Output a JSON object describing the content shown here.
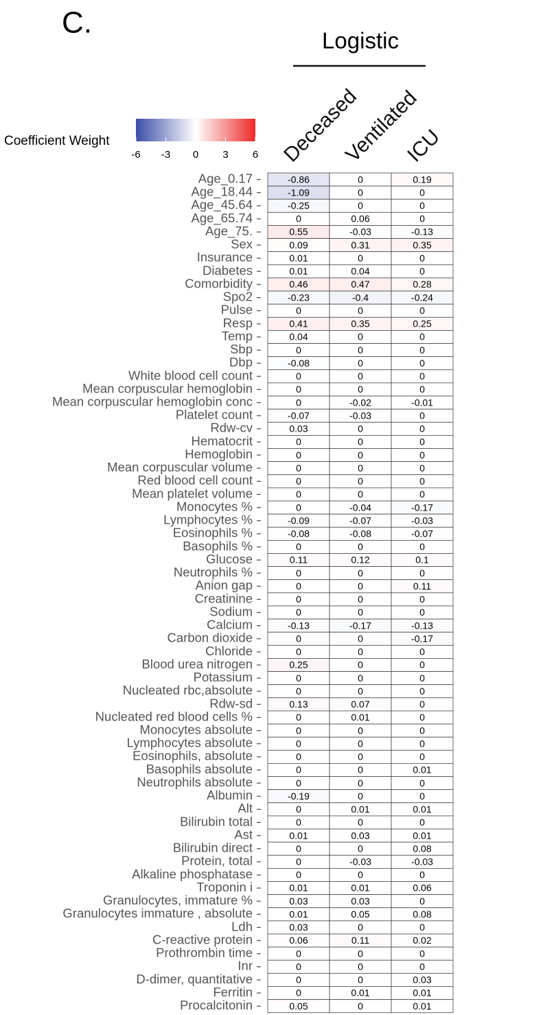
{
  "chart_data": {
    "type": "heatmap",
    "panel_label": "C.",
    "title": "Logistic",
    "columns": [
      "Deceased",
      "Ventilated",
      "ICU"
    ],
    "rows": [
      "Age_0.17",
      "Age_18.44",
      "Age_45.64",
      "Age_65.74",
      "Age_75.",
      "Sex",
      "Insurance",
      "Diabetes",
      "Comorbidity",
      "Spo2",
      "Pulse",
      "Resp",
      "Temp",
      "Sbp",
      "Dbp",
      "White blood cell count",
      "Mean corpuscular hemoglobin",
      "Mean corpuscular hemoglobin conc",
      "Platelet count",
      "Rdw-cv",
      "Hematocrit",
      "Hemoglobin",
      "Mean corpuscular volume",
      "Red blood cell count",
      "Mean platelet volume",
      "Monocytes %",
      "Lymphocytes %",
      "Eosinophils %",
      "Basophils %",
      "Glucose",
      "Neutrophils %",
      "Anion gap",
      "Creatinine",
      "Sodium",
      "Calcium",
      "Carbon dioxide",
      "Chloride",
      "Blood urea nitrogen",
      "Potassium",
      "Nucleated rbc,absolute",
      "Rdw-sd",
      "Nucleated red blood cells %",
      "Monocytes absolute",
      "Lymphocytes absolute",
      "Eosinophils, absolute",
      "Basophils absolute",
      "Neutrophils  absolute",
      "Albumin",
      "Alt",
      "Bilirubin total",
      "Ast",
      "Bilirubin direct",
      "Protein, total",
      "Alkaline phosphatase",
      "Troponin i",
      "Granulocytes, immature %",
      "Granulocytes immature , absolute",
      "Ldh",
      "C-reactive protein",
      "Prothrombin time",
      "Inr",
      "D-dimer, quantitative",
      "Ferritin",
      "Procalcitonin"
    ],
    "values": [
      [
        -0.86,
        0,
        0.19
      ],
      [
        -1.09,
        0,
        0
      ],
      [
        -0.25,
        0,
        0
      ],
      [
        0,
        0.06,
        0
      ],
      [
        0.55,
        -0.03,
        -0.13
      ],
      [
        0.09,
        0.31,
        0.35
      ],
      [
        0.01,
        0,
        0
      ],
      [
        0.01,
        0.04,
        0
      ],
      [
        0.46,
        0.47,
        0.28
      ],
      [
        -0.23,
        -0.4,
        -0.24
      ],
      [
        0,
        0,
        0
      ],
      [
        0.41,
        0.35,
        0.25
      ],
      [
        0.04,
        0,
        0
      ],
      [
        0,
        0,
        0
      ],
      [
        -0.08,
        0,
        0
      ],
      [
        0,
        0,
        0
      ],
      [
        0,
        0,
        0
      ],
      [
        0,
        -0.02,
        -0.01
      ],
      [
        -0.07,
        -0.03,
        0
      ],
      [
        0.03,
        0,
        0
      ],
      [
        0,
        0,
        0
      ],
      [
        0,
        0,
        0
      ],
      [
        0,
        0,
        0
      ],
      [
        0,
        0,
        0
      ],
      [
        0,
        0,
        0
      ],
      [
        0,
        -0.04,
        -0.17
      ],
      [
        -0.09,
        -0.07,
        -0.03
      ],
      [
        -0.08,
        -0.08,
        -0.07
      ],
      [
        0,
        0,
        0
      ],
      [
        0.11,
        0.12,
        0.1
      ],
      [
        0,
        0,
        0
      ],
      [
        0,
        0,
        0.11
      ],
      [
        0,
        0,
        0
      ],
      [
        0,
        0,
        0
      ],
      [
        -0.13,
        -0.17,
        -0.13
      ],
      [
        0,
        0,
        -0.17
      ],
      [
        0,
        0,
        0
      ],
      [
        0.25,
        0,
        0
      ],
      [
        0,
        0,
        0
      ],
      [
        0,
        0,
        0
      ],
      [
        0.13,
        0.07,
        0
      ],
      [
        0,
        0.01,
        0
      ],
      [
        0,
        0,
        0
      ],
      [
        0,
        0,
        0
      ],
      [
        0,
        0,
        0
      ],
      [
        0,
        0,
        0.01
      ],
      [
        0,
        0,
        0
      ],
      [
        -0.19,
        0,
        0
      ],
      [
        0,
        0.01,
        0.01
      ],
      [
        0,
        0,
        0
      ],
      [
        0.01,
        0.03,
        0.01
      ],
      [
        0,
        0,
        0.08
      ],
      [
        0,
        -0.03,
        -0.03
      ],
      [
        0,
        0,
        0
      ],
      [
        0.01,
        0.01,
        0.06
      ],
      [
        0.03,
        0.03,
        0
      ],
      [
        0.01,
        0.05,
        0.08
      ],
      [
        0.03,
        0,
        0
      ],
      [
        0.06,
        0.11,
        0.02
      ],
      [
        0,
        0,
        0
      ],
      [
        0,
        0,
        0
      ],
      [
        0,
        0,
        0.03
      ],
      [
        0,
        0.01,
        0.01
      ],
      [
        0.05,
        0,
        0.01
      ]
    ],
    "colorbar": {
      "label": "Coefficient Weight",
      "lim": [
        -6,
        6
      ],
      "ticks": [
        -6,
        -3,
        0,
        3,
        6
      ]
    },
    "colors": {
      "low": "#3b4ea6",
      "mid": "#ffffff",
      "high": "#ee2a27"
    }
  }
}
